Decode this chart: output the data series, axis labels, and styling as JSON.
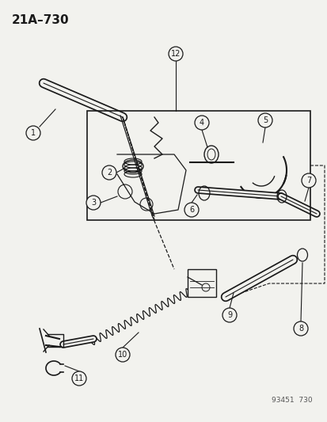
{
  "title": "21A–730",
  "bg_color": "#f2f2ee",
  "line_color": "#1a1a1a",
  "watermark": "93451  730"
}
